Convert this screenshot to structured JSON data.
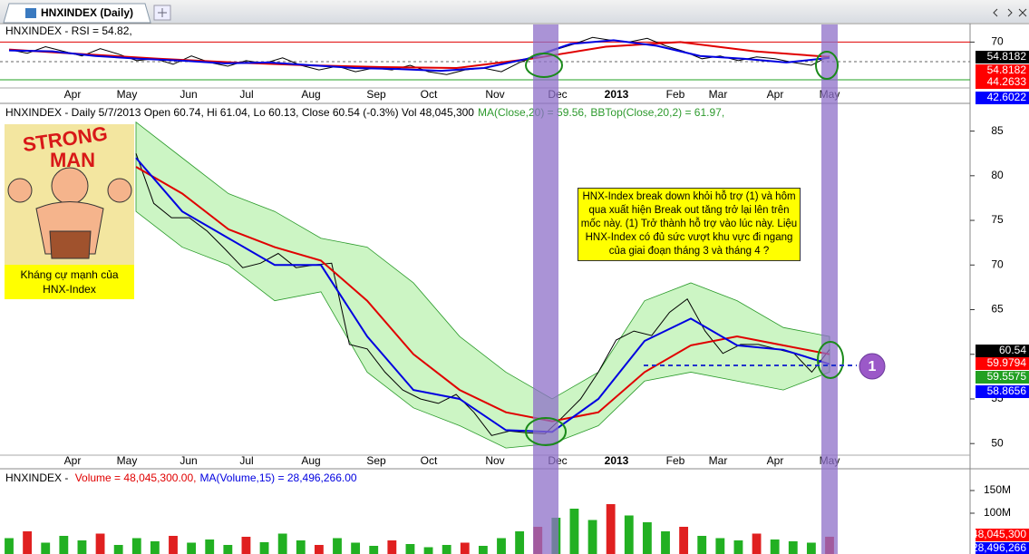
{
  "tab": {
    "title": "HNXINDEX (Daily)"
  },
  "xlabels": [
    "Apr",
    "May",
    "Jun",
    "Jul",
    "Aug",
    "Sep",
    "Oct",
    "Nov",
    "Dec",
    "2013",
    "Feb",
    "Mar",
    "Apr",
    "May"
  ],
  "note": "HNX-Index break down khỏi hỗ trợ (1) và hôm qua xuất hiện Break out tăng trở lại lên trên mốc này. (1) Trở thành hỗ trợ vào lúc này. Liệu HNX-Index có đủ sức vượt khu vực đi ngang của giai đoạn tháng 3 và tháng 4 ?",
  "image_text": [
    "STRONG",
    "MAN"
  ],
  "image_caption": [
    "Kháng cự mạnh của",
    "HNX-Index"
  ],
  "marker": "1",
  "chart_data": [
    {
      "type": "line",
      "title_parts": [
        {
          "text": "HNXINDEX - RSI = 54.82,",
          "color": "#000000"
        }
      ],
      "ylim": [
        20.5,
        89
      ],
      "yticks": [
        70
      ],
      "series": [
        {
          "color": "#000000",
          "values": [
            62,
            58,
            65,
            60,
            55,
            63,
            57,
            50,
            52,
            46,
            55,
            48,
            44,
            50,
            47,
            53,
            45,
            40,
            44,
            38,
            42,
            40,
            45,
            38,
            35,
            40,
            42,
            38,
            48,
            55,
            62,
            68,
            75,
            72,
            70,
            74,
            66,
            60,
            52,
            55,
            50,
            54,
            52,
            48,
            45,
            55
          ]
        },
        {
          "color": "#e00000",
          "values": [
            62,
            57,
            52,
            48,
            45,
            43,
            42,
            52,
            65,
            70,
            60,
            54
          ]
        },
        {
          "color": "#0000e0",
          "values": [
            61,
            60,
            55,
            52,
            50,
            47,
            48,
            45,
            42,
            41,
            39,
            42,
            52,
            68,
            72,
            66,
            55,
            52,
            48,
            53
          ]
        }
      ],
      "last_values": [
        54.8182,
        54.8182,
        44.2633,
        42.6022
      ],
      "last_colors": [
        "#000000",
        "#ff0000",
        "#ff0000",
        "#0000ff"
      ]
    },
    {
      "type": "line",
      "title_parts": [
        {
          "text": "HNXINDEX - Daily 5/7/2013 Open 60.74, Hi 61.04, Lo 60.13, Close 60.54 (-0.3%) Vol 48,045,300",
          "color": "#000000"
        },
        {
          "text": "MA(Close,20) = 59.56,",
          "color": "#2e9a2e"
        },
        {
          "text": "BBTop(Close,20,2) = 61.97,",
          "color": "#2e9a2e"
        }
      ],
      "ylim": [
        48.7,
        87.7
      ],
      "yticks": [
        50,
        55,
        60,
        65,
        70,
        75,
        80,
        85
      ],
      "band_color": "#ccf5c4",
      "band_upper": [
        86,
        82,
        78,
        76,
        73,
        72,
        68,
        62,
        58,
        55,
        58,
        66,
        68,
        66,
        63,
        62
      ],
      "band_lower": [
        76,
        72,
        70,
        66,
        67,
        58,
        54,
        52,
        49.5,
        50,
        52,
        57,
        58,
        57,
        56,
        58
      ],
      "series": [
        {
          "color": "#000000",
          "values": [
            82.5,
            76.9,
            75.3,
            75.3,
            73.8,
            71.8,
            69.7,
            70.2,
            71.3,
            69.7,
            70.0,
            70.2,
            61.1,
            60.6,
            58.0,
            56.0,
            55.0,
            54.5,
            55.5,
            53.5,
            50.9,
            51.4,
            51.2,
            51.1,
            53.0,
            55.0,
            58.0,
            61.6,
            62.6,
            62.1,
            64.7,
            66.2,
            62.6,
            60.1,
            61.1,
            61.1,
            60.6,
            60.1,
            58.0,
            60.54
          ]
        },
        {
          "color": "#e00000",
          "values": [
            81,
            78,
            74,
            72,
            70.5,
            66,
            60,
            56,
            53.5,
            52.5,
            53.5,
            58,
            61,
            62,
            61,
            60
          ]
        },
        {
          "color": "#0000e0",
          "values": [
            82,
            76,
            73,
            70,
            70,
            62,
            56,
            55,
            51.5,
            51.3,
            55,
            61.5,
            64,
            61,
            60.5,
            58.9
          ]
        }
      ],
      "last_values": [
        60.54,
        59.9794,
        59.5575,
        58.8656
      ],
      "last_colors": [
        "#000000",
        "#ff0000",
        "#22a022",
        "#0000ff"
      ]
    },
    {
      "type": "bar",
      "title_parts": [
        {
          "text": "HNXINDEX - ",
          "color": "#000000"
        },
        {
          "text": "Volume = 48,045,300.00,",
          "color": "#e00000"
        },
        {
          "text": "MA(Volume,15) = 28,496,266.00",
          "color": "#0000e0"
        }
      ],
      "ylim": [
        10,
        196
      ],
      "yticks": [
        {
          "value": 100,
          "label": "100M"
        },
        {
          "value": 150,
          "label": "150M"
        }
      ],
      "series": [
        {
          "color": "#22b022",
          "values": [
            45,
            60,
            35,
            50,
            40,
            55,
            30,
            45,
            38,
            50,
            35,
            42,
            30,
            48,
            36,
            55,
            40,
            30,
            45,
            35,
            28,
            40,
            32,
            25,
            30,
            35,
            28,
            45,
            60,
            70,
            90,
            110,
            85,
            120,
            95,
            80,
            60,
            70,
            50,
            45,
            40,
            55,
            42,
            38,
            35,
            48.0453
          ]
        }
      ],
      "last_values": [
        {
          "value": 48.0453,
          "label": "48,045,300"
        },
        {
          "value": 28.496266,
          "label": "28,496,266"
        }
      ],
      "last_colors": [
        "#ff0000",
        "#0000ff"
      ]
    }
  ]
}
